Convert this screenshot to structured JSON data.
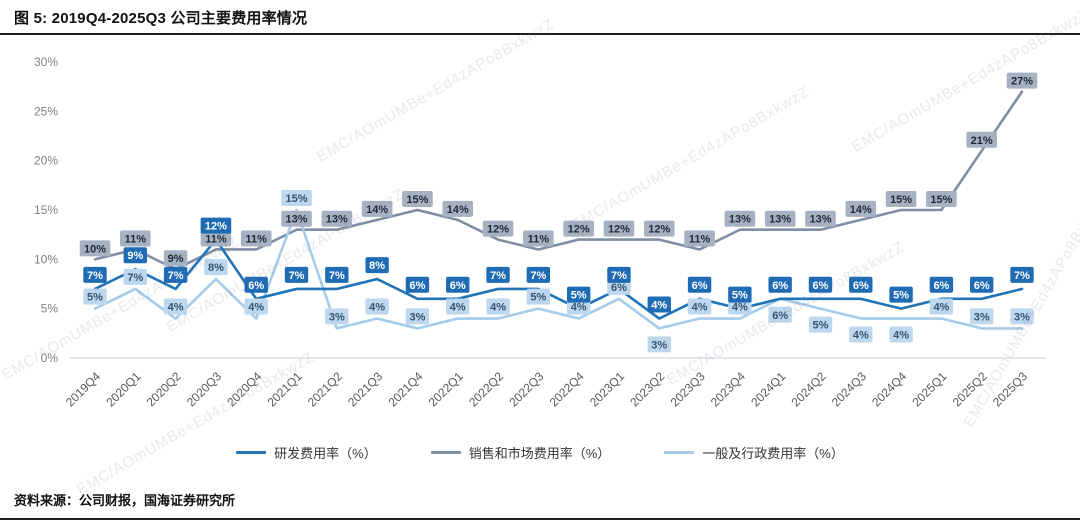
{
  "page": {
    "title": "图 5:  2019Q4-2025Q3 公司主要费用率情况",
    "source": "资料来源：公司财报，国海证券研究所",
    "watermark": "EMC/AOmUMBe+Ed4zAPo8BxkwzZ"
  },
  "chart_data": {
    "type": "line",
    "title": "图 5: 2019Q4-2025Q3 公司主要费用率情况",
    "xlabel": "",
    "ylabel": "",
    "ylim": [
      0,
      30
    ],
    "yticks": [
      "0%",
      "5%",
      "10%",
      "15%",
      "20%",
      "25%",
      "30%"
    ],
    "grid": false,
    "legend_position": "bottom",
    "categories": [
      "2019Q4",
      "2020Q1",
      "2020Q2",
      "2020Q3",
      "2020Q4",
      "2021Q1",
      "2021Q2",
      "2021Q3",
      "2021Q4",
      "2022Q1",
      "2022Q2",
      "2022Q3",
      "2022Q4",
      "2023Q1",
      "2023Q2",
      "2023Q3",
      "2023Q4",
      "2024Q1",
      "2024Q2",
      "2024Q3",
      "2024Q4",
      "2025Q1",
      "2025Q2",
      "2025Q3"
    ],
    "series": [
      {
        "key": "rd",
        "name": "研发费用率（%）",
        "color": "#2074B8",
        "label_bg": "#1F6CB5",
        "label_color": "#FFFFFF",
        "values": [
          7,
          9,
          7,
          12,
          6,
          7,
          7,
          8,
          6,
          6,
          7,
          7,
          5,
          7,
          4,
          6,
          5,
          6,
          6,
          6,
          5,
          6,
          6,
          7
        ]
      },
      {
        "key": "sm",
        "name": "销售和市场费用率（%）",
        "color": "#7E8EA3",
        "label_bg": "#A6B2C1",
        "label_color": "#1F2A36",
        "values": [
          10,
          11,
          9,
          11,
          11,
          13,
          13,
          14,
          15,
          14,
          12,
          11,
          12,
          12,
          12,
          11,
          13,
          13,
          13,
          14,
          15,
          15,
          21,
          27
        ]
      },
      {
        "key": "ga",
        "name": "一般及行政费用率（%）",
        "color": "#A5CBEA",
        "label_bg": "#BDD7EE",
        "label_color": "#33546E",
        "values": [
          5,
          7,
          4,
          8,
          4,
          15,
          3,
          4,
          3,
          4,
          4,
          5,
          4,
          6,
          3,
          4,
          4,
          6,
          5,
          4,
          4,
          4,
          3,
          3
        ]
      }
    ]
  }
}
